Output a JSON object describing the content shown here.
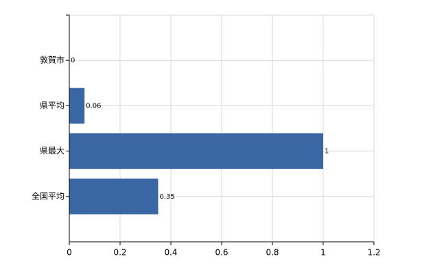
{
  "chart_data": {
    "type": "bar",
    "orientation": "horizontal",
    "categories": [
      "敦賀市",
      "県平均",
      "県最大",
      "全国平均"
    ],
    "values": [
      0,
      0.06,
      1,
      0.35
    ],
    "color": "#3a67a3",
    "xlim": [
      0,
      1.2
    ],
    "xticks": [
      0,
      0.2,
      0.4,
      0.6,
      0.8,
      1,
      1.2
    ],
    "grid": true
  }
}
